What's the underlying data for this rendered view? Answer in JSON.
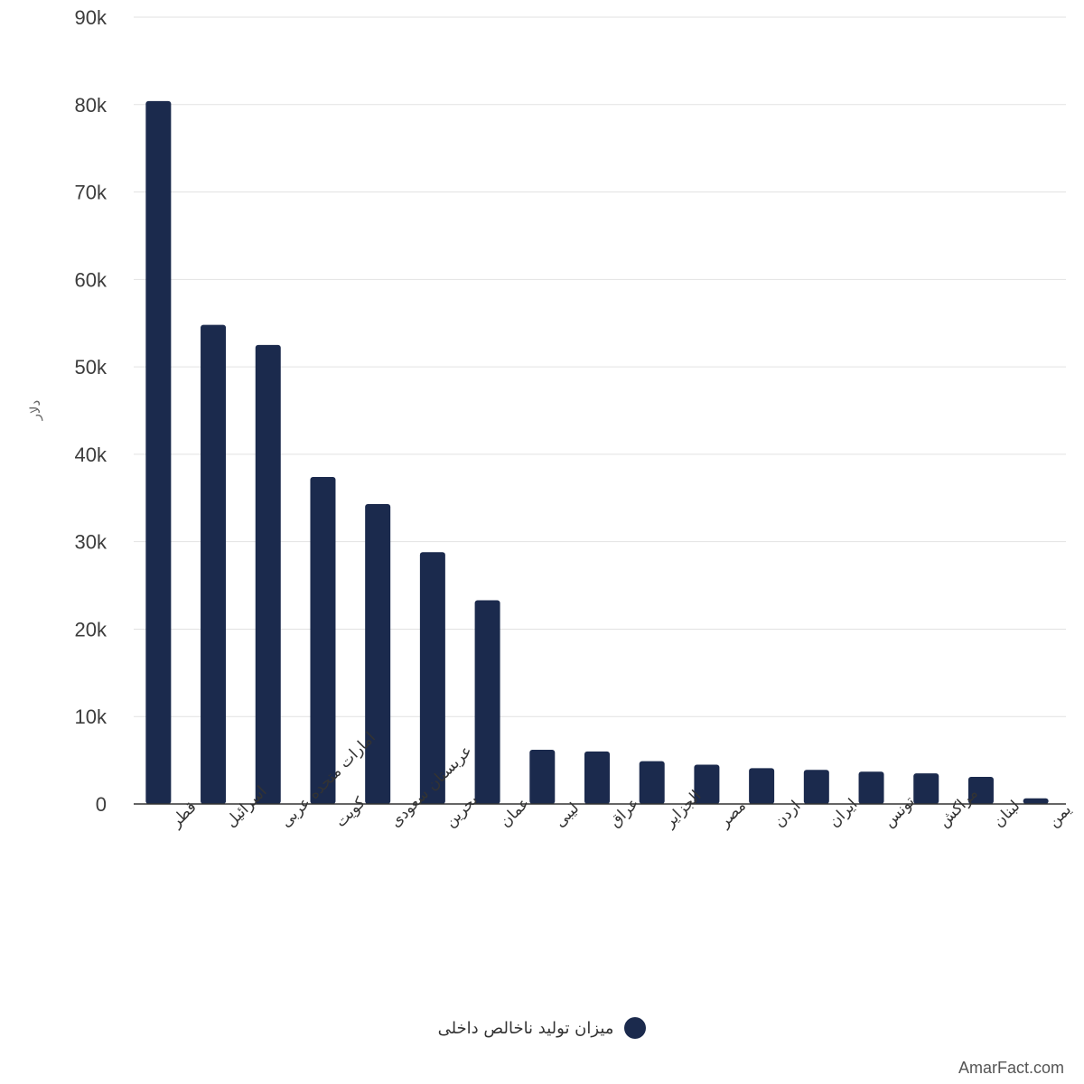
{
  "colors": {
    "bar": "#1b2a4d",
    "grid": "#e2e2e2",
    "axis": "#333333"
  },
  "legend": {
    "label": "میزان تولید ناخالص داخلی"
  },
  "watermark": "AmarFact.com",
  "chart_data": {
    "type": "bar",
    "categories": [
      "قطر",
      "اسرائیل",
      "امارات متحده عربی",
      "کویت",
      "عربستان سعودی",
      "بحرین",
      "عمان",
      "لیبی",
      "عراق",
      "الجزایر",
      "مصر",
      "اردن",
      "ایران",
      "تونس",
      "مراکش",
      "لبنان",
      "یمن"
    ],
    "series": [
      {
        "name": "میزان تولید ناخالص داخلی",
        "values": [
          80400,
          54800,
          52500,
          37400,
          34300,
          28800,
          23300,
          6200,
          6000,
          4900,
          4500,
          4100,
          3900,
          3700,
          3500,
          3100,
          650
        ]
      }
    ],
    "ylabel": "دلار",
    "xlabel": "",
    "ylim": [
      0,
      90000
    ],
    "yticks": [
      0,
      10000,
      20000,
      30000,
      40000,
      50000,
      60000,
      70000,
      80000,
      90000
    ],
    "ytick_labels": [
      "0",
      "10k",
      "20k",
      "30k",
      "40k",
      "50k",
      "60k",
      "70k",
      "80k",
      "90k"
    ],
    "grid": true,
    "legend_position": "bottom"
  }
}
